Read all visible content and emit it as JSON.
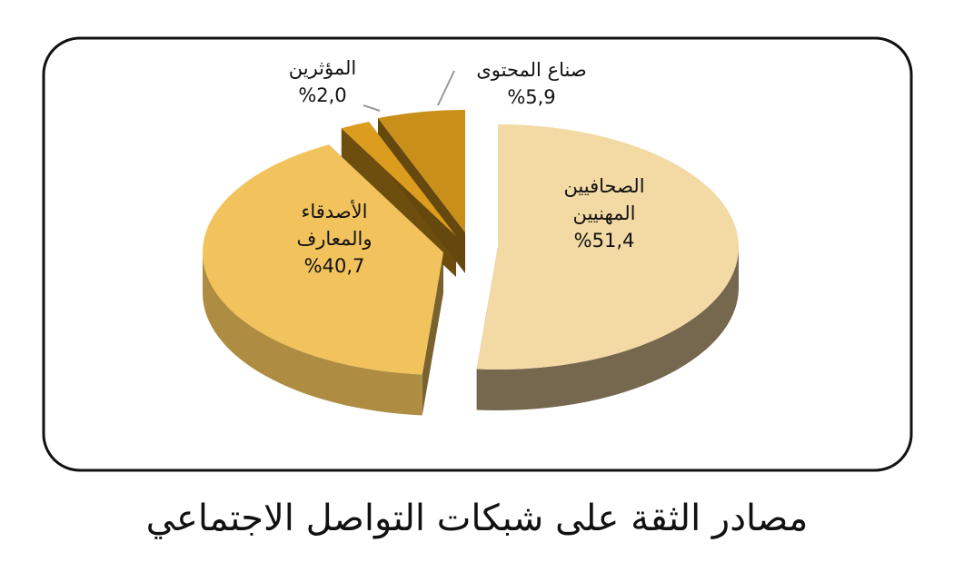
{
  "chart_data": {
    "type": "pie",
    "title": "مصادر الثقة على  شبكات التواصل الاجتماعي",
    "categories": [
      "الصحافيين المهنيين",
      "الأصدقاء والمعارف",
      "المؤثرين",
      "صناع المحتوى"
    ],
    "values": [
      51.4,
      40.7,
      2.0,
      5.9
    ],
    "value_labels": [
      "%51,4",
      "%40,7",
      "%2,0",
      "%5,9"
    ],
    "colors": [
      "#f3d9a4",
      "#f2c35c",
      "#dc9c1e",
      "#c98f19"
    ]
  }
}
